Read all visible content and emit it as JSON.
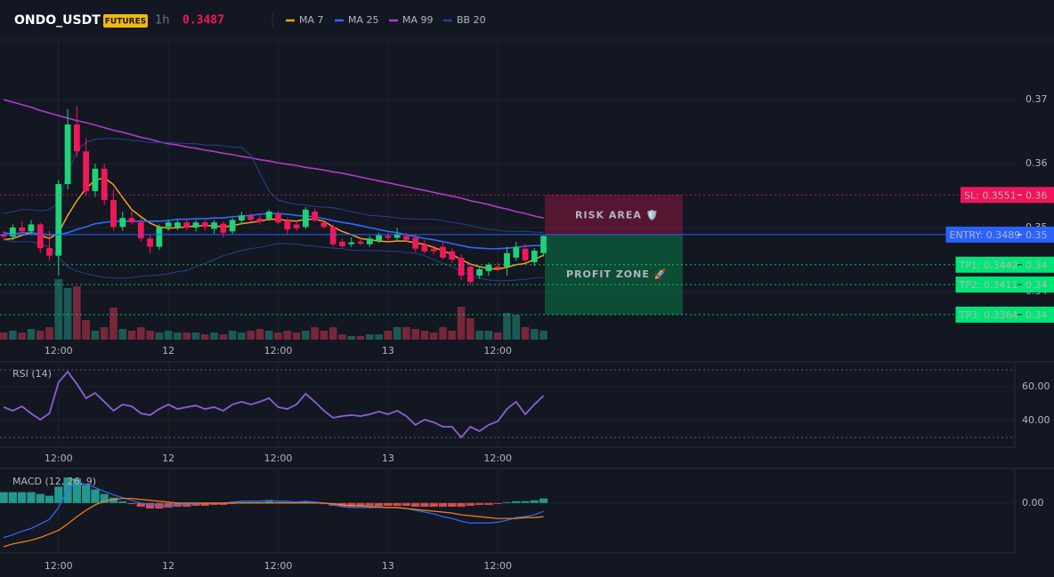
{
  "header": {
    "symbol": "ONDO_USDT",
    "badge": "FUTURES",
    "interval": "1h",
    "price": "0.3487"
  },
  "chart_data": [
    {
      "type": "candlestick",
      "xlim": [
        -0.4,
        110.5
      ],
      "xticks": [
        {
          "value": 6,
          "label": "12:00"
        },
        {
          "value": 18,
          "label": "12"
        },
        {
          "value": 30,
          "label": "12:00"
        },
        {
          "value": 42,
          "label": "13"
        },
        {
          "value": 54,
          "label": "12:00"
        }
      ],
      "ylim": [
        0.3325,
        0.3793
      ],
      "yticks": [
        0.34,
        0.35,
        0.36,
        0.37
      ],
      "grid": true,
      "up_color": "#1fd17a",
      "down_color": "#f0185a",
      "volume_up_color": "#1b5a55",
      "volume_down_color": "#76273a",
      "vlim": [
        0,
        100
      ],
      "open": [
        0.349,
        0.3486,
        0.35,
        0.3494,
        0.3505,
        0.3468,
        0.3456,
        0.3568,
        0.3661,
        0.3619,
        0.3557,
        0.3592,
        0.3543,
        0.3501,
        0.3515,
        0.3508,
        0.3483,
        0.347,
        0.3501,
        0.3501,
        0.3508,
        0.35,
        0.3508,
        0.3498,
        0.3506,
        0.3494,
        0.3511,
        0.3518,
        0.3514,
        0.3514,
        0.3522,
        0.3511,
        0.3505,
        0.3501,
        0.3525,
        0.3508,
        0.3501,
        0.3478,
        0.3474,
        0.3478,
        0.3474,
        0.3479,
        0.3487,
        0.3484,
        0.3487,
        0.3484,
        0.3474,
        0.3467,
        0.347,
        0.3463,
        0.3453,
        0.3439,
        0.3425,
        0.3432,
        0.3439,
        0.3439,
        0.3453,
        0.3467,
        0.3446,
        0.346
      ],
      "high": [
        0.3495,
        0.3505,
        0.351,
        0.3512,
        0.3508,
        0.3495,
        0.3575,
        0.3685,
        0.369,
        0.364,
        0.36,
        0.36,
        0.356,
        0.3525,
        0.3528,
        0.3515,
        0.349,
        0.3505,
        0.3512,
        0.3512,
        0.3515,
        0.3512,
        0.3512,
        0.3512,
        0.351,
        0.3515,
        0.3525,
        0.3522,
        0.352,
        0.3528,
        0.3526,
        0.3515,
        0.351,
        0.3532,
        0.353,
        0.3512,
        0.3505,
        0.3483,
        0.3485,
        0.3485,
        0.3487,
        0.3492,
        0.3492,
        0.35,
        0.3492,
        0.349,
        0.348,
        0.3472,
        0.3476,
        0.3468,
        0.3458,
        0.3445,
        0.344,
        0.3445,
        0.3445,
        0.347,
        0.3478,
        0.3475,
        0.3468,
        0.3488
      ],
      "low": [
        0.3482,
        0.348,
        0.349,
        0.3488,
        0.346,
        0.3448,
        0.3425,
        0.356,
        0.361,
        0.355,
        0.3548,
        0.3535,
        0.3495,
        0.3495,
        0.3505,
        0.3478,
        0.346,
        0.3465,
        0.3495,
        0.3496,
        0.3495,
        0.3494,
        0.3495,
        0.349,
        0.3485,
        0.349,
        0.3505,
        0.3508,
        0.3505,
        0.351,
        0.3505,
        0.349,
        0.3495,
        0.3498,
        0.3508,
        0.3498,
        0.347,
        0.3468,
        0.347,
        0.3472,
        0.347,
        0.3476,
        0.3478,
        0.348,
        0.3478,
        0.3462,
        0.346,
        0.3458,
        0.345,
        0.3445,
        0.3418,
        0.341,
        0.342,
        0.3425,
        0.3432,
        0.3425,
        0.3448,
        0.3445,
        0.344,
        0.3455
      ],
      "close": [
        0.3486,
        0.35,
        0.3494,
        0.3505,
        0.3468,
        0.3456,
        0.3568,
        0.3661,
        0.3619,
        0.3557,
        0.3592,
        0.3543,
        0.3501,
        0.3515,
        0.3508,
        0.3483,
        0.347,
        0.3501,
        0.3508,
        0.3508,
        0.35,
        0.3508,
        0.3501,
        0.3508,
        0.3492,
        0.3512,
        0.3519,
        0.3512,
        0.3509,
        0.3525,
        0.3508,
        0.3497,
        0.3499,
        0.3528,
        0.3511,
        0.3501,
        0.3474,
        0.3471,
        0.3477,
        0.3475,
        0.3483,
        0.3488,
        0.3484,
        0.349,
        0.3481,
        0.3467,
        0.3463,
        0.3463,
        0.3453,
        0.345,
        0.3425,
        0.3415,
        0.3435,
        0.3442,
        0.3436,
        0.346,
        0.347,
        0.3449,
        0.3464,
        0.3487
      ],
      "volume": [
        8,
        10,
        8,
        12,
        10,
        14,
        68,
        58,
        60,
        22,
        10,
        14,
        36,
        12,
        10,
        14,
        10,
        8,
        10,
        8,
        8,
        8,
        6,
        8,
        6,
        10,
        8,
        10,
        12,
        10,
        8,
        10,
        8,
        10,
        14,
        10,
        14,
        6,
        4,
        4,
        6,
        6,
        10,
        14,
        14,
        12,
        10,
        8,
        14,
        10,
        37,
        24,
        10,
        10,
        8,
        30,
        28,
        14,
        12,
        10
      ],
      "series": [
        {
          "name": "MA 7",
          "color": "#f7a21b",
          "values": [
            0.3481,
            0.3483,
            0.3488,
            0.3492,
            0.3488,
            0.3483,
            0.3492,
            0.3519,
            0.3542,
            0.3561,
            0.3574,
            0.3578,
            0.3567,
            0.3547,
            0.3528,
            0.3517,
            0.3507,
            0.3501,
            0.3499,
            0.35,
            0.3501,
            0.3503,
            0.3503,
            0.3503,
            0.3501,
            0.3503,
            0.3506,
            0.3508,
            0.351,
            0.3513,
            0.3513,
            0.3511,
            0.351,
            0.3513,
            0.3513,
            0.351,
            0.3501,
            0.3494,
            0.3489,
            0.3483,
            0.3481,
            0.3479,
            0.3478,
            0.3479,
            0.3479,
            0.3476,
            0.3474,
            0.3469,
            0.3464,
            0.3458,
            0.345,
            0.3443,
            0.3439,
            0.3436,
            0.3435,
            0.3438,
            0.3442,
            0.3444,
            0.345,
            0.3457
          ]
        },
        {
          "name": "MA 25",
          "color": "#2f6bff",
          "values": [
            0.3492,
            0.349,
            0.3492,
            0.3492,
            0.349,
            0.3489,
            0.3489,
            0.3492,
            0.3497,
            0.3501,
            0.3506,
            0.3508,
            0.351,
            0.351,
            0.351,
            0.351,
            0.351,
            0.351,
            0.3511,
            0.3513,
            0.3513,
            0.3514,
            0.3514,
            0.3515,
            0.3515,
            0.3517,
            0.3518,
            0.3519,
            0.3521,
            0.3522,
            0.3522,
            0.3521,
            0.3519,
            0.3518,
            0.3517,
            0.3514,
            0.3511,
            0.3508,
            0.3506,
            0.3503,
            0.35,
            0.3497,
            0.3494,
            0.3492,
            0.3489,
            0.3486,
            0.3483,
            0.3481,
            0.3478,
            0.3475,
            0.3472,
            0.3469,
            0.3468,
            0.3467,
            0.3467,
            0.3468,
            0.3469,
            0.3471,
            0.3472,
            0.3472
          ]
        },
        {
          "name": "MA 99",
          "color": "#b03cc8",
          "values": [
            0.37,
            0.3696,
            0.3692,
            0.3688,
            0.3683,
            0.3679,
            0.3675,
            0.3671,
            0.3667,
            0.3664,
            0.366,
            0.3656,
            0.3652,
            0.3649,
            0.3645,
            0.3641,
            0.3638,
            0.3634,
            0.3631,
            0.3629,
            0.3626,
            0.3624,
            0.3621,
            0.3619,
            0.3616,
            0.3614,
            0.3611,
            0.3609,
            0.3606,
            0.3604,
            0.3601,
            0.3599,
            0.3597,
            0.3594,
            0.3592,
            0.359,
            0.3587,
            0.3585,
            0.3582,
            0.3579,
            0.3576,
            0.3573,
            0.357,
            0.3567,
            0.3564,
            0.3561,
            0.3558,
            0.3555,
            0.3552,
            0.3549,
            0.3546,
            0.3542,
            0.3539,
            0.3536,
            0.3532,
            0.3529,
            0.3525,
            0.3522,
            0.3518,
            0.3515
          ]
        },
        {
          "name": "BB 20",
          "color": "#2a3f8f",
          "upper": [
            0.3522,
            0.3525,
            0.3528,
            0.3528,
            0.3526,
            0.3528,
            0.3539,
            0.3585,
            0.3619,
            0.3633,
            0.3638,
            0.3639,
            0.3639,
            0.3638,
            0.3636,
            0.3635,
            0.3633,
            0.3633,
            0.3633,
            0.3632,
            0.3631,
            0.3631,
            0.3629,
            0.3629,
            0.3628,
            0.3626,
            0.3625,
            0.3613,
            0.3585,
            0.3557,
            0.3543,
            0.3539,
            0.3536,
            0.3535,
            0.3533,
            0.3532,
            0.3531,
            0.3528,
            0.3525,
            0.3522,
            0.3519,
            0.3518,
            0.3517,
            0.3515,
            0.3514,
            0.3513,
            0.3513,
            0.3513,
            0.3511,
            0.3508,
            0.3506,
            0.3503,
            0.35,
            0.3497,
            0.3496,
            0.3494,
            0.3494,
            0.3494,
            0.3493,
            0.3492
          ],
          "lower": [
            0.3481,
            0.3478,
            0.3478,
            0.3478,
            0.3475,
            0.3469,
            0.3453,
            0.3439,
            0.3432,
            0.3428,
            0.3425,
            0.3422,
            0.3421,
            0.3421,
            0.3422,
            0.3424,
            0.3425,
            0.3426,
            0.3428,
            0.3431,
            0.3433,
            0.3439,
            0.3444,
            0.345,
            0.3456,
            0.346,
            0.3464,
            0.3467,
            0.3469,
            0.3472,
            0.3475,
            0.3475,
            0.3474,
            0.3472,
            0.3471,
            0.3469,
            0.3468,
            0.3467,
            0.3465,
            0.3464,
            0.3464,
            0.3464,
            0.3463,
            0.3463,
            0.3461,
            0.346,
            0.3456,
            0.345,
            0.3444,
            0.3439,
            0.3432,
            0.3425,
            0.3421,
            0.3418,
            0.3417,
            0.3417,
            0.3418,
            0.3419,
            0.3421,
            0.3422
          ]
        }
      ],
      "levels": [
        {
          "label": "SL: 0.3551",
          "value": 0.3551,
          "axis_label": "0.36",
          "color": "#f0145a",
          "style": "dotted"
        },
        {
          "label": "ENTRY: 0.3489",
          "value": 0.3489,
          "axis_label": "0.35",
          "color": "#2962ff",
          "style": "solid"
        },
        {
          "label": "TP1: 0.3442",
          "value": 0.3442,
          "axis_label": "0.34",
          "color": "#00e676",
          "style": "dotted"
        },
        {
          "label": "TP2: 0.3411",
          "value": 0.3411,
          "axis_label": "0.34",
          "color": "#00e676",
          "style": "dotted"
        },
        {
          "label": "TP3: 0.3364",
          "value": 0.3364,
          "axis_label": "0.34",
          "color": "#00e676",
          "style": "dotted"
        }
      ],
      "zones": [
        {
          "label": "RISK AREA 🛡️",
          "from": 0.3551,
          "to": 0.3489,
          "color": "#f0145a"
        },
        {
          "label": "PROFIT ZONE 🚀",
          "from": 0.3489,
          "to": 0.3364,
          "color": "#00c864"
        }
      ]
    },
    {
      "type": "line",
      "label": "RSI (14)",
      "color": "#8e5fd6",
      "ylim": [
        24.2,
        74.2
      ],
      "yticks": [
        {
          "value": 60,
          "label": "60.00"
        },
        {
          "value": 40,
          "label": "40.00"
        }
      ],
      "bands": [
        70,
        30
      ],
      "values": [
        47.9,
        45.8,
        48.4,
        44.2,
        40.5,
        44.2,
        62.6,
        68.9,
        61.6,
        53.2,
        56.3,
        51.1,
        45.8,
        49.5,
        48.4,
        44.2,
        43.2,
        46.8,
        49.5,
        46.8,
        47.9,
        48.9,
        46.8,
        47.9,
        45.8,
        49.5,
        51.1,
        49.5,
        51.1,
        53.2,
        47.9,
        46.8,
        49.5,
        55.8,
        51.1,
        45.8,
        41.6,
        42.6,
        43.2,
        42.6,
        43.7,
        45.3,
        43.7,
        45.8,
        42.6,
        37.4,
        40.5,
        38.9,
        36.3,
        36.3,
        30.0,
        36.3,
        33.7,
        37.4,
        39.5,
        46.8,
        51.1,
        43.7,
        49.5,
        54.7
      ]
    },
    {
      "type": "macd",
      "label": "MACD (12, 26, 9)",
      "ylim": [
        -0.0055,
        0.0037
      ],
      "yticks": [
        {
          "value": 0,
          "label": "0.00"
        }
      ],
      "up_color": "#26a69a",
      "down_color": "#ef5350",
      "macd_color": "#2f6bff",
      "signal_color": "#f7861b",
      "histogram": [
        0.0012,
        0.0012,
        0.0012,
        0.0012,
        0.001,
        0.0008,
        0.0018,
        0.0028,
        0.0027,
        0.002,
        0.0015,
        0.001,
        0.0006,
        0.0002,
        -0.0001,
        -0.0004,
        -0.0006,
        -0.0006,
        -0.0005,
        -0.0004,
        -0.0004,
        -0.0003,
        -0.0003,
        -0.0002,
        -0.0002,
        -0.0001,
        0.0001,
        0.0001,
        0.0001,
        0.0002,
        0.0001,
        0.0001,
        0.0001,
        0.0002,
        0.0001,
        -0.0001,
        -0.0003,
        -0.0004,
        -0.0004,
        -0.0004,
        -0.0003,
        -0.0003,
        -0.0003,
        -0.0003,
        -0.0003,
        -0.0004,
        -0.0004,
        -0.0004,
        -0.0004,
        -0.0004,
        -0.0004,
        -0.0003,
        -0.0002,
        -0.0002,
        -0.0001,
        0.0001,
        0.0002,
        0.0002,
        0.0003,
        0.0005
      ],
      "macd": [
        -0.0038,
        -0.0035,
        -0.0031,
        -0.0028,
        -0.0023,
        -0.0018,
        -0.0005,
        0.0015,
        0.0022,
        0.0021,
        0.0017,
        0.0013,
        0.0009,
        0.0006,
        0.0003,
        0,
        -0.0002,
        -0.0003,
        -0.0003,
        -0.0002,
        -0.0001,
        -0.0001,
        0,
        0,
        0,
        0.0001,
        0.0002,
        0.0002,
        0.0002,
        0.0003,
        0.0002,
        0.0002,
        0.0001,
        0.0002,
        0.0001,
        0,
        -0.0002,
        -0.0004,
        -0.0005,
        -0.0005,
        -0.0005,
        -0.0005,
        -0.0005,
        -0.0005,
        -0.0006,
        -0.0008,
        -0.001,
        -0.0012,
        -0.0015,
        -0.0017,
        -0.002,
        -0.0022,
        -0.0022,
        -0.0022,
        -0.0021,
        -0.0019,
        -0.0016,
        -0.0015,
        -0.0013,
        -0.0009
      ],
      "signal": [
        -0.0048,
        -0.0045,
        -0.0043,
        -0.0041,
        -0.0038,
        -0.0034,
        -0.003,
        -0.0023,
        -0.0015,
        -0.0008,
        -0.0002,
        0.0002,
        0.0004,
        0.0005,
        0.0005,
        0.0004,
        0.0003,
        0.0002,
        0.0001,
        0,
        0,
        0,
        0,
        0,
        0,
        0,
        0,
        0,
        0,
        0,
        0,
        0,
        0,
        0,
        0,
        0,
        -0.0001,
        -0.0002,
        -0.0003,
        -0.0003,
        -0.0004,
        -0.0004,
        -0.0005,
        -0.0005,
        -0.0006,
        -0.0007,
        -0.0008,
        -0.0009,
        -0.001,
        -0.0011,
        -0.0013,
        -0.0014,
        -0.0015,
        -0.0016,
        -0.0017,
        -0.0017,
        -0.0017,
        -0.0016,
        -0.0016,
        -0.0015
      ]
    }
  ]
}
